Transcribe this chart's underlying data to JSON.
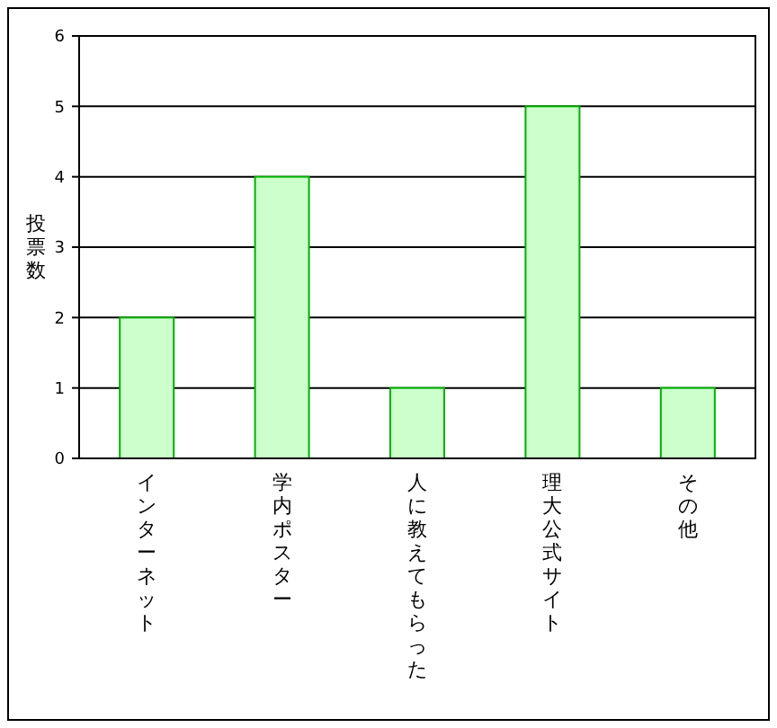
{
  "chart_data": {
    "type": "bar",
    "ylabel": "投票数",
    "categories": [
      "インターネット",
      "学内ポスター",
      "人に教えてもらった",
      "理大公式サイト",
      "その他"
    ],
    "values": [
      2,
      4,
      1,
      5,
      1
    ],
    "color": "#ccffcc",
    "ylim": [
      0,
      6
    ],
    "yticks": [
      0,
      1,
      2,
      3,
      4,
      5,
      6
    ],
    "grid": "y"
  }
}
